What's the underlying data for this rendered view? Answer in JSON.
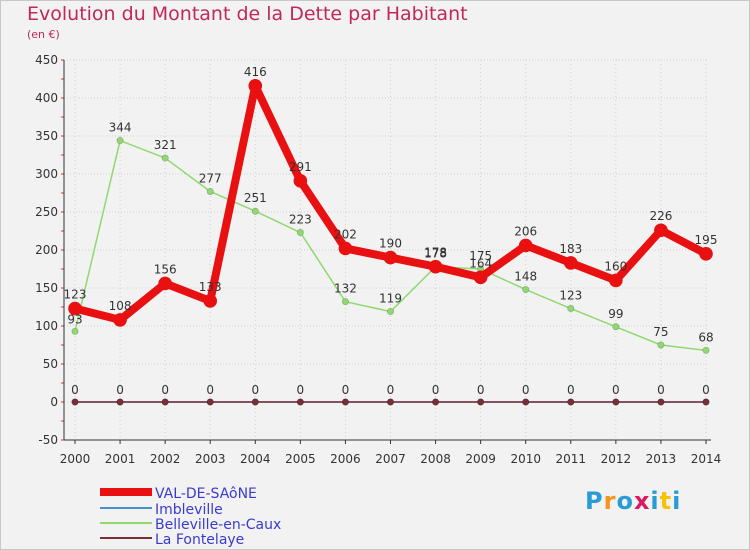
{
  "page": {
    "title": "Evolution du Montant de la Dette par Habitant",
    "subtitle": "(en €)",
    "logo": [
      "P",
      "r",
      "o",
      "x",
      "i",
      "t",
      "i"
    ]
  },
  "colors": {
    "title": "#c0285a",
    "grid": "#d0d0d0",
    "axis": "#333333",
    "tickRed": "#e03030",
    "labels": "#333333",
    "logo": [
      "#2a9bd6",
      "#f7931e",
      "#2a9bd6",
      "#d81b60",
      "#2a9bd6",
      "#f7c200",
      "#2a9bd6"
    ]
  },
  "chart_data": {
    "type": "line",
    "title": "Evolution du Montant de la Dette par Habitant",
    "ylabel": "(en €)",
    "xlabel": "",
    "x": [
      "2000",
      "2001",
      "2002",
      "2003",
      "2004",
      "2005",
      "2006",
      "2007",
      "2008",
      "2009",
      "2010",
      "2011",
      "2012",
      "2013",
      "2014"
    ],
    "ylim": [
      -50,
      450
    ],
    "yticks": [
      -50,
      0,
      50,
      100,
      150,
      200,
      250,
      300,
      350,
      400,
      450
    ],
    "grid": "horizontal",
    "legend_position": "bottom-left",
    "series": [
      {
        "name": "VAL-DE-SAôNE",
        "color": "#e81010",
        "stroke": 8,
        "values": [
          123,
          108,
          156,
          133,
          416,
          291,
          202,
          190,
          178,
          164,
          206,
          183,
          160,
          226,
          195
        ],
        "labels": true
      },
      {
        "name": "Imbleville",
        "color": "#4a90c8",
        "stroke": 1.5,
        "values": [
          0,
          0,
          0,
          0,
          0,
          0,
          0,
          0,
          0,
          0,
          0,
          0,
          0,
          0,
          0
        ],
        "labels": false
      },
      {
        "name": "Belleville-en-Caux",
        "color": "#90d870",
        "stroke": 1.5,
        "values": [
          93,
          344,
          321,
          277,
          251,
          223,
          132,
          119,
          178,
          175,
          148,
          123,
          99,
          75,
          68
        ],
        "labels": true
      },
      {
        "name": "La Fontelaye",
        "color": "#7a2e38",
        "stroke": 1.5,
        "values": [
          0,
          0,
          0,
          0,
          0,
          0,
          0,
          0,
          0,
          0,
          0,
          0,
          0,
          0,
          0
        ],
        "labels": true
      }
    ]
  }
}
